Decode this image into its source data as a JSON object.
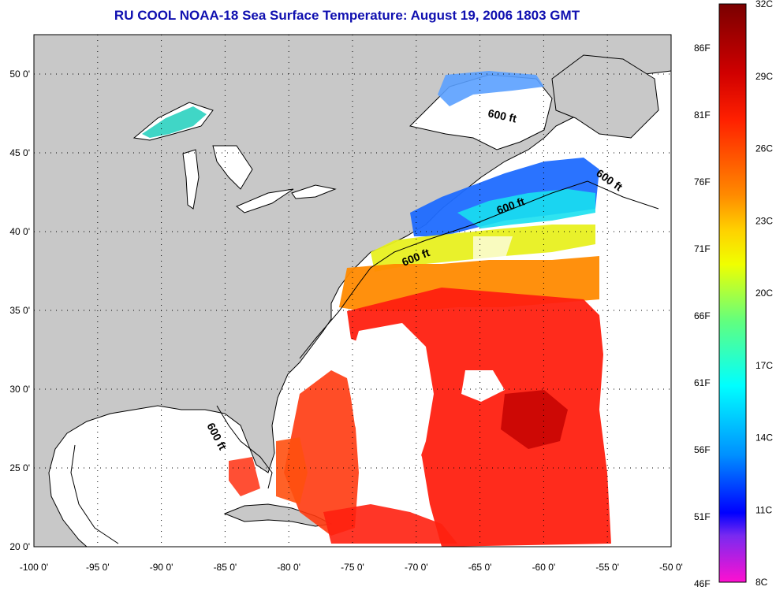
{
  "title": "RU COOL  NOAA-18  Sea Surface Temperature:  August 19, 2006 1803 GMT",
  "map": {
    "lon_ticks": [
      "-100 0'",
      "-95 0'",
      "-90 0'",
      "-85 0'",
      "-80 0'",
      "-75 0'",
      "-70 0'",
      "-65 0'",
      "-60 0'",
      "-55 0'",
      "-50 0'"
    ],
    "lat_ticks": [
      "50 0'",
      "45 0'",
      "40 0'",
      "35 0'",
      "30 0'",
      "25 0'",
      "20 0'"
    ],
    "lon_range": [
      -100,
      -50
    ],
    "lat_range": [
      20,
      52.5
    ],
    "land_color": "#c8c8c8",
    "no_data_color": "#ffffff",
    "contour_labels": [
      "600 ft",
      "600 ft",
      "600 ft",
      "600 ft",
      "600 ft"
    ]
  },
  "colorbar": {
    "celsius_labels": [
      "32C",
      "29C",
      "26C",
      "23C",
      "20C",
      "17C",
      "14C",
      "11C",
      "8C"
    ],
    "fahrenheit_labels": [
      "86F",
      "81F",
      "76F",
      "71F",
      "66F",
      "61F",
      "56F",
      "51F",
      "46F"
    ],
    "colors": [
      "#7a0000",
      "#ff1a00",
      "#ff8a00",
      "#ffff00",
      "#6fff6f",
      "#00ffff",
      "#0080ff",
      "#0000ff",
      "#ff10d0"
    ]
  }
}
